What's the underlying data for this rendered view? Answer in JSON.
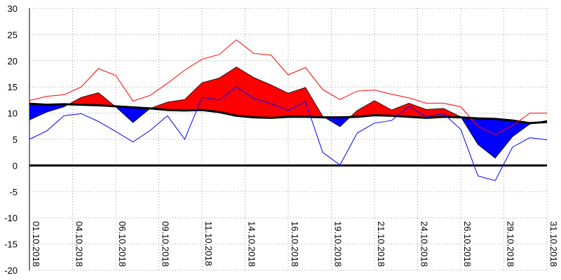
{
  "chart_data": {
    "type": "line",
    "x": [
      1,
      2,
      3,
      4,
      5,
      6,
      7,
      8,
      9,
      10,
      11,
      12,
      13,
      14,
      15,
      16,
      17,
      18,
      19,
      20,
      21,
      22,
      23,
      24,
      25,
      26,
      27,
      28,
      29,
      30,
      31
    ],
    "xlim": [
      1,
      31
    ],
    "xticks": [
      {
        "value": 1,
        "label": "01.10.2018"
      },
      {
        "value": 3.5,
        "label": "04.10.2018"
      },
      {
        "value": 6,
        "label": "06.10.2018"
      },
      {
        "value": 8.5,
        "label": "09.10.2018"
      },
      {
        "value": 11,
        "label": "11.10.2018"
      },
      {
        "value": 13.5,
        "label": "14.10.2018"
      },
      {
        "value": 16,
        "label": "16.10.2018"
      },
      {
        "value": 18.5,
        "label": "19.10.2018"
      },
      {
        "value": 21,
        "label": "21.10.2018"
      },
      {
        "value": 23.5,
        "label": "24.10.2018"
      },
      {
        "value": 26,
        "label": "26.10.2018"
      },
      {
        "value": 28.5,
        "label": "29.10.2018"
      },
      {
        "value": 31,
        "label": "31.10.2018"
      }
    ],
    "ylim": [
      -20,
      30
    ],
    "yticks": [
      -20,
      -15,
      -10,
      -5,
      0,
      5,
      10,
      15,
      20,
      25,
      30
    ],
    "grid": true,
    "fill": {
      "above": "#ff0000",
      "below": "#0000ff"
    },
    "series": [
      {
        "color": "#000000",
        "values": [
          8.7,
          10.2,
          11.2,
          13,
          13.9,
          11.2,
          8.2,
          10.9,
          12.1,
          12.6,
          15.8,
          16.7,
          18.8,
          16.8,
          15.4,
          13.8,
          14.9,
          9.4,
          7.4,
          10.5,
          12.4,
          10.6,
          11.9,
          10.7,
          10.9,
          9.3,
          4.0,
          1.4,
          5.5,
          7.9,
          8.6
        ]
      },
      {
        "color": "#000000",
        "values": [
          11.8,
          11.6,
          11.7,
          11.6,
          11.5,
          11.3,
          11.1,
          10.9,
          10.6,
          10.5,
          10.6,
          10.2,
          9.5,
          9.2,
          9.1,
          9.3,
          9.3,
          9.2,
          9.2,
          9.3,
          9.6,
          9.5,
          9.3,
          9.1,
          9.3,
          9.2,
          9.0,
          8.9,
          8.6,
          8.1,
          8.3
        ]
      },
      {
        "color": "#ff0000",
        "values": [
          12.4,
          13.2,
          13.5,
          15,
          18.5,
          17.2,
          12.3,
          13.4,
          15.7,
          18.2,
          20.3,
          21.2,
          24,
          21.4,
          21.1,
          17.3,
          18.7,
          14.5,
          12.6,
          14.2,
          14.4,
          13.6,
          12.9,
          11.9,
          11.9,
          11.2,
          7.5,
          5.9,
          7.6,
          10,
          10
        ]
      },
      {
        "color": "#0000ff",
        "values": [
          5,
          6.6,
          9.5,
          9.9,
          8.4,
          6.5,
          4.5,
          6.7,
          9.5,
          5,
          13,
          12.5,
          15,
          12.8,
          11.8,
          10.5,
          12.2,
          2.5,
          0.1,
          6.2,
          8.1,
          8.6,
          11.3,
          9.3,
          9.9,
          6.9,
          -2,
          -2.9,
          3.5,
          5.3,
          4.9
        ]
      }
    ]
  }
}
